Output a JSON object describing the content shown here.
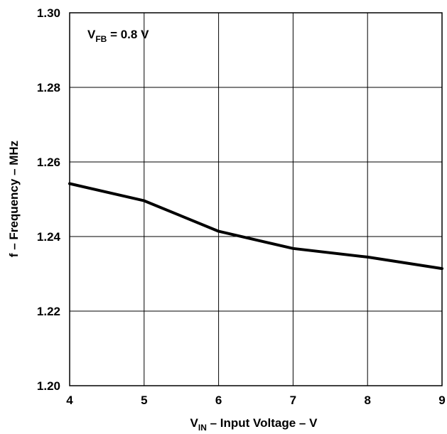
{
  "chart_data": {
    "type": "line",
    "title": "",
    "xlabel": {
      "main": "V",
      "sub": "IN",
      "rest": " – Input Voltage – V"
    },
    "ylabel": "f – Frequency – MHz",
    "xlim": [
      4,
      9
    ],
    "ylim": [
      1.2,
      1.3
    ],
    "x_ticks": [
      "4",
      "5",
      "6",
      "7",
      "8",
      "9"
    ],
    "y_ticks": [
      "1.20",
      "1.22",
      "1.24",
      "1.26",
      "1.28",
      "1.30"
    ],
    "grid": true,
    "annotation": {
      "main": "V",
      "sub": "FB",
      "rest": " = 0.8 V"
    },
    "series": [
      {
        "x": [
          4,
          5,
          6,
          7,
          8,
          9
        ],
        "y": [
          1.2542,
          1.2496,
          1.2414,
          1.2368,
          1.2345,
          1.2314
        ]
      }
    ],
    "line_color": "#000000"
  }
}
